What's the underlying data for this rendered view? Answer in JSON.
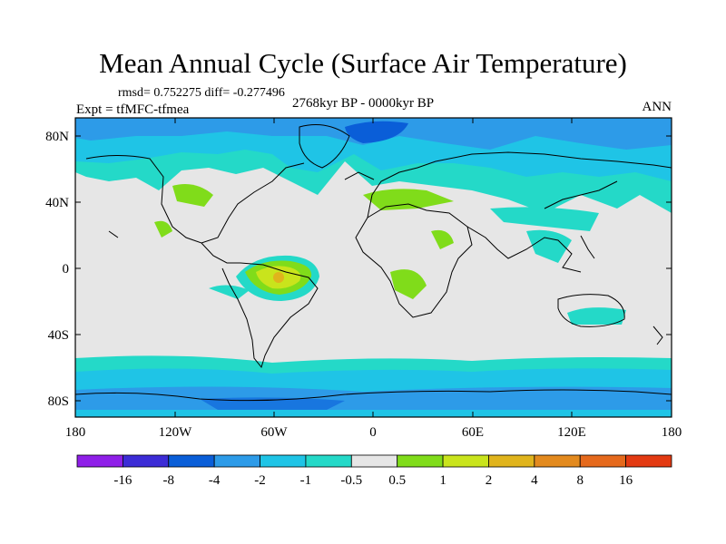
{
  "title": "Mean Annual Cycle (Surface Air Temperature)",
  "stats": "rmsd= 0.752275 diff= -0.277496",
  "experiment": "Expt = tfMFC-tfmea",
  "period": "2768kyr BP - 0000kyr BP",
  "season": "ANN",
  "lat_labels": [
    "80N",
    "40N",
    "0",
    "40S",
    "80S"
  ],
  "lon_labels": [
    "180",
    "120W",
    "60W",
    "0",
    "60E",
    "120E",
    "180"
  ],
  "colorbar": {
    "labels": [
      "-16",
      "-8",
      "-4",
      "-2",
      "-1",
      "-0.5",
      "0.5",
      "1",
      "2",
      "4",
      "8",
      "16"
    ],
    "colors": [
      "#8f1fe8",
      "#3c2cd6",
      "#0a5ed8",
      "#2d9be8",
      "#1fc4e6",
      "#24d9c8",
      "#e6e6e6",
      "#80dc1a",
      "#c9e41c",
      "#e0b41c",
      "#e38a1e",
      "#e5691c",
      "#e33a12"
    ]
  },
  "colors": {
    "ocean_neutral": "#e6e6e6",
    "coastline": "#000000"
  }
}
